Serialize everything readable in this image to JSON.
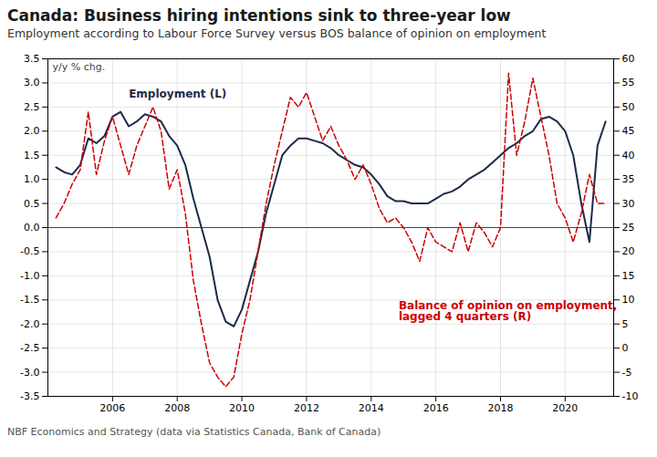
{
  "chart_data": {
    "type": "line",
    "title": "Canada: Business hiring intentions sink to three-year low",
    "subtitle": "Employment according to Labour Force Survey versus BOS balance of opinion on employment",
    "footnote": "NBF Economics and Strategy (data via Statistics Canada, Bank of Canada)",
    "ylabel": "y/y % chg.",
    "x": [
      2004.25,
      2004.5,
      2004.75,
      2005.0,
      2005.25,
      2005.5,
      2005.75,
      2006.0,
      2006.25,
      2006.5,
      2006.75,
      2007.0,
      2007.25,
      2007.5,
      2007.75,
      2008.0,
      2008.25,
      2008.5,
      2008.75,
      2009.0,
      2009.25,
      2009.5,
      2009.75,
      2010.0,
      2010.25,
      2010.5,
      2010.75,
      2011.0,
      2011.25,
      2011.5,
      2011.75,
      2012.0,
      2012.25,
      2012.5,
      2012.75,
      2013.0,
      2013.25,
      2013.5,
      2013.75,
      2014.0,
      2014.25,
      2014.5,
      2014.75,
      2015.0,
      2015.25,
      2015.5,
      2015.75,
      2016.0,
      2016.25,
      2016.5,
      2016.75,
      2017.0,
      2017.25,
      2017.5,
      2017.75,
      2018.0,
      2018.25,
      2018.5,
      2018.75,
      2019.0,
      2019.25,
      2019.5,
      2019.75,
      2020.0,
      2020.25,
      2020.5,
      2020.75,
      2021.0,
      2021.25
    ],
    "series": [
      {
        "name": "Employment (L)",
        "color": "#1c2b4a",
        "line_style": "solid",
        "values": [
          1.25,
          1.15,
          1.1,
          1.3,
          1.85,
          1.75,
          1.9,
          2.3,
          2.4,
          2.1,
          2.2,
          2.35,
          2.3,
          2.2,
          1.9,
          1.7,
          1.3,
          0.6,
          0.0,
          -0.6,
          -1.5,
          -1.95,
          -2.05,
          -1.7,
          -1.1,
          -0.5,
          0.3,
          0.9,
          1.5,
          1.7,
          1.85,
          1.85,
          1.8,
          1.75,
          1.65,
          1.5,
          1.4,
          1.3,
          1.25,
          1.1,
          0.9,
          0.65,
          0.55,
          0.55,
          0.5,
          0.5,
          0.5,
          0.6,
          0.7,
          0.75,
          0.85,
          1.0,
          1.1,
          1.2,
          1.35,
          1.5,
          1.65,
          1.75,
          1.9,
          2.0,
          2.25,
          2.3,
          2.2,
          2.0,
          1.5,
          0.5,
          -0.3,
          1.7,
          2.2
        ]
      },
      {
        "name": "Balance of opinion on employment,\nlagged 4 quarters (R)",
        "color": "#cc0000",
        "line_style": "dashed",
        "axis": "y2",
        "values": [
          27,
          30,
          34,
          37,
          49,
          36,
          43,
          48,
          42,
          36,
          42,
          46,
          50,
          45,
          33,
          37,
          28,
          14,
          5,
          -3,
          -6,
          -8,
          -6,
          3,
          10,
          20,
          30,
          38,
          45,
          52,
          50,
          53,
          48,
          43,
          46,
          42,
          39,
          35,
          38,
          34,
          29,
          26,
          27,
          25,
          22,
          18,
          25,
          22,
          21,
          20,
          26,
          20,
          26,
          24,
          21,
          25,
          57,
          40,
          47,
          56,
          48,
          40,
          30,
          27,
          22,
          28,
          36,
          30,
          30
        ]
      }
    ],
    "xlim": [
      2004.0,
      2021.5
    ],
    "xticks": [
      2006,
      2008,
      2010,
      2012,
      2014,
      2016,
      2018,
      2020
    ],
    "ylim": [
      -3.5,
      3.5
    ],
    "yticks": [
      -3.5,
      {
        "value": -3.0,
        "label": "-3.0"
      },
      -2.5,
      {
        "value": -2.0,
        "label": "-2.0"
      },
      -1.5,
      {
        "value": -1.0,
        "label": "-1.0"
      },
      -0.5,
      {
        "value": 0.0,
        "label": "0.0"
      },
      0.5,
      {
        "value": 1.0,
        "label": "1.0"
      },
      1.5,
      {
        "value": 2.0,
        "label": "2.0"
      },
      2.5,
      {
        "value": 3.0,
        "label": "3.0"
      },
      3.5
    ],
    "y2lim": [
      -10,
      60
    ],
    "y2ticks": [
      -10,
      -5,
      0,
      5,
      10,
      15,
      20,
      25,
      30,
      35,
      40,
      45,
      50,
      55,
      60
    ],
    "grid": true
  }
}
